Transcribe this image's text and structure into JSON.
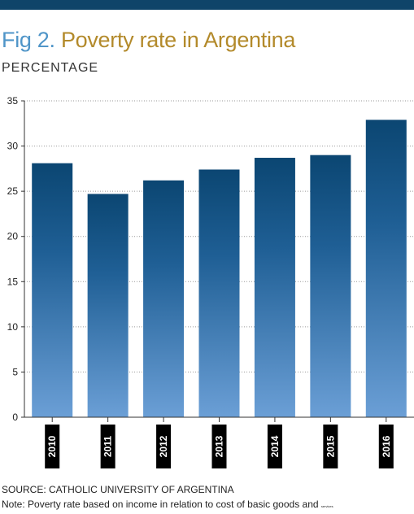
{
  "header": {
    "title_prefix": "Fig 2.",
    "title_main": "Poverty rate in Argentina",
    "subtitle": "PERCENTAGE"
  },
  "footer": {
    "source": "SOURCE: CATHOLIC UNIVERSITY OF ARGENTINA",
    "note": "Note: Poverty rate based on income in relation to cost of basic goods and",
    "note_tail": "services"
  },
  "colors": {
    "accent_bar": "#0f4469",
    "title_prefix": "#4f95c8",
    "title_main": "#b38a2b",
    "bar_top": "#0b4672",
    "bar_bottom": "#6b9fd6",
    "label_bg": "#000000"
  },
  "chart_data": {
    "type": "bar",
    "categories": [
      "2010",
      "2011",
      "2012",
      "2013",
      "2014",
      "2015",
      "2016"
    ],
    "values": [
      28.1,
      24.7,
      26.2,
      27.4,
      28.7,
      29.0,
      32.9
    ],
    "ylim": [
      0,
      35
    ],
    "yticks": [
      "0",
      "5",
      "10",
      "15",
      "20",
      "25",
      "30",
      "35"
    ],
    "grid": true
  }
}
